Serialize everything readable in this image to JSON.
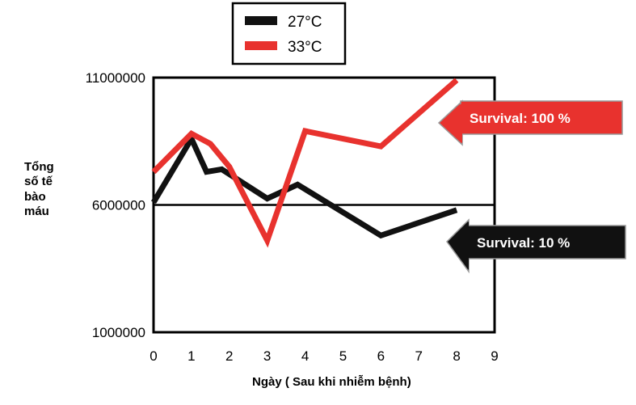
{
  "chart_data": {
    "type": "line",
    "xlabel": "Ngày ( Sau khi nhiễm bệnh)",
    "ylabel_lines": [
      "Tổng",
      "số tế",
      "bào",
      "máu"
    ],
    "xlim": [
      0,
      9
    ],
    "ylim": [
      1000000,
      11000000
    ],
    "x_ticks": [
      "0",
      "1",
      "2",
      "3",
      "4",
      "5",
      "6",
      "7",
      "8",
      "9"
    ],
    "y_ticks": [
      {
        "value": 1000000,
        "label": "1000000"
      },
      {
        "value": 6000000,
        "label": "6000000"
      },
      {
        "value": 11000000,
        "label": "11000000"
      }
    ],
    "reference_line": 6000000,
    "legend_placement": "top",
    "series": [
      {
        "name": "27°C",
        "color": "#111111",
        "points": [
          [
            0,
            6100000
          ],
          [
            1,
            8600000
          ],
          [
            1.4,
            7300000
          ],
          [
            1.8,
            7400000
          ],
          [
            3,
            6250000
          ],
          [
            3.8,
            6800000
          ],
          [
            6,
            4800000
          ],
          [
            8,
            5800000
          ]
        ]
      },
      {
        "name": "33°C",
        "color": "#e8322e",
        "points": [
          [
            0,
            7300000
          ],
          [
            1,
            8800000
          ],
          [
            1.5,
            8400000
          ],
          [
            2,
            7500000
          ],
          [
            3,
            4600000
          ],
          [
            4,
            8900000
          ],
          [
            6,
            8300000
          ],
          [
            8,
            10900000
          ]
        ]
      }
    ],
    "annotations": [
      {
        "text": "Survival: 100 %",
        "color": "#e8322e"
      },
      {
        "text": "Survival: 10 %",
        "color": "#111111"
      }
    ]
  }
}
